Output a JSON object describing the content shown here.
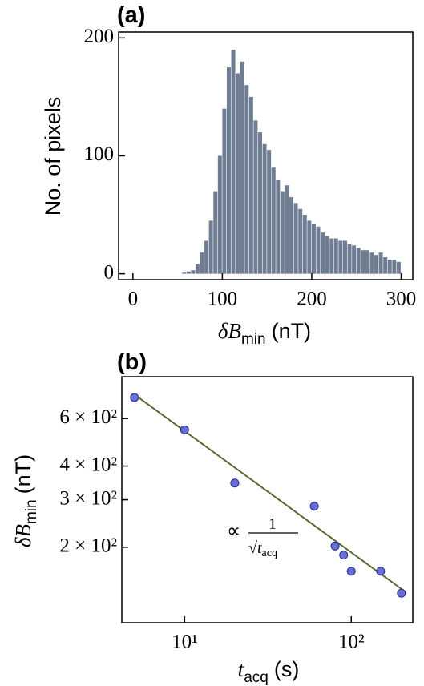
{
  "chart_data": [
    {
      "type": "histogram",
      "panel_label": "(a)",
      "bins": [
        50,
        55,
        60,
        65,
        70,
        75,
        80,
        85,
        90,
        95,
        100,
        105,
        110,
        115,
        120,
        125,
        130,
        135,
        140,
        145,
        150,
        155,
        160,
        165,
        170,
        175,
        180,
        185,
        190,
        195,
        200,
        205,
        210,
        215,
        220,
        225,
        230,
        235,
        240,
        245,
        250,
        255,
        260,
        265,
        270,
        275,
        280,
        285,
        290,
        295,
        300
      ],
      "counts": [
        0,
        1,
        2,
        3,
        8,
        18,
        28,
        45,
        70,
        100,
        140,
        175,
        190,
        170,
        180,
        160,
        150,
        130,
        120,
        110,
        105,
        90,
        80,
        70,
        75,
        65,
        60,
        55,
        50,
        45,
        42,
        40,
        35,
        32,
        30,
        30,
        28,
        28,
        25,
        24,
        22,
        20,
        20,
        18,
        16,
        18,
        14,
        12,
        12,
        10
      ],
      "color": "#6e7d91",
      "xlabel": "δB",
      "xlabel_sub": "min",
      "xlabel_unit": "(nT)",
      "ylabel": "No. of pixels",
      "xlim": [
        -16,
        313
      ],
      "ylim": [
        -5,
        205
      ],
      "xticks": [
        0,
        100,
        200,
        300
      ],
      "yticks": [
        0,
        100,
        200
      ]
    },
    {
      "type": "scatter",
      "panel_label": "(b)",
      "log_x": true,
      "log_y": true,
      "series": [
        {
          "type": "scatter",
          "color": "#6a70d2",
          "edgecolor": "#1f2a99",
          "x": [
            5,
            10,
            20,
            60,
            80,
            90,
            100,
            150,
            200
          ],
          "values": [
            718,
            545,
            346,
            284,
            202,
            187,
            163,
            163,
            135
          ]
        },
        {
          "type": "line",
          "color": "#556b2f",
          "x": [
            5,
            210
          ],
          "values": [
            737,
            137
          ]
        }
      ],
      "annotation": {
        "symbol": "∝",
        "numerator": "1",
        "root": "√",
        "var": "t",
        "sub": "acq"
      },
      "xlabel": "t",
      "xlabel_sub": "acq",
      "xlabel_unit": "(s)",
      "ylabel": "δB",
      "ylabel_sub": "min",
      "ylabel_unit": "(nT)",
      "xlim": [
        4.2,
        234
      ],
      "ylim": [
        105,
        858
      ],
      "xticks": [
        {
          "value": 10,
          "label": "10¹"
        },
        {
          "value": 100,
          "label": "10²"
        }
      ],
      "yticks": [
        {
          "value": 200,
          "label": "2 × 10²"
        },
        {
          "value": 300,
          "label": "3 × 10²"
        },
        {
          "value": 400,
          "label": "4 × 10²"
        },
        {
          "value": 600,
          "label": "6 × 10²"
        }
      ]
    }
  ]
}
